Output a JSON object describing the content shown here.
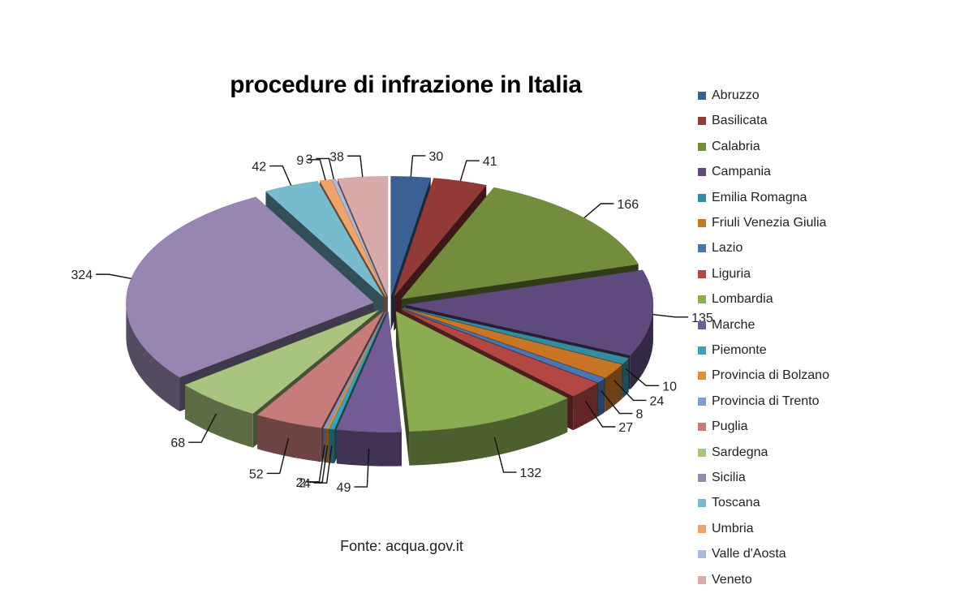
{
  "chart_data": {
    "type": "pie",
    "title": "procedure di infrazione in Italia",
    "note": "Fonte: acqua.gov.it",
    "legend_position": "right",
    "exploded_3d": true,
    "slices": [
      {
        "label": "Abruzzo",
        "value": 30,
        "color": "#3b6194"
      },
      {
        "label": "Basilicata",
        "value": 41,
        "color": "#913a38"
      },
      {
        "label": "Calabria",
        "value": 166,
        "color": "#738d3c"
      },
      {
        "label": "Campania",
        "value": 135,
        "color": "#5f4a7e"
      },
      {
        "label": "Emilia Romagna",
        "value": 10,
        "color": "#348c9e"
      },
      {
        "label": "Friuli Venezia Giulia",
        "value": 24,
        "color": "#c87526"
      },
      {
        "label": "Lazio",
        "value": 8,
        "color": "#4a76b0"
      },
      {
        "label": "Liguria",
        "value": 27,
        "color": "#b34744"
      },
      {
        "label": "Lombardia",
        "value": 132,
        "color": "#8cac52"
      },
      {
        "label": "Marche",
        "value": 49,
        "color": "#735b96"
      },
      {
        "label": "Piemonte",
        "value": 4,
        "color": "#3aa0b4"
      },
      {
        "label": "Provincia di Bolzano",
        "value": 2,
        "color": "#e38d36"
      },
      {
        "label": "Provincia di Trento",
        "value": 2,
        "color": "#7f9dcb"
      },
      {
        "label": "Puglia",
        "value": 52,
        "color": "#c77b7a"
      },
      {
        "label": "Sardegna",
        "value": 68,
        "color": "#a9c47e"
      },
      {
        "label": "Sicilia",
        "value": 324,
        "color": "#9886b2"
      },
      {
        "label": "Toscana",
        "value": 42,
        "color": "#78bace"
      },
      {
        "label": "Umbria",
        "value": 9,
        "color": "#f1a46a"
      },
      {
        "label": "Valle d'Aosta",
        "value": 3,
        "color": "#adb9d9"
      },
      {
        "label": "Veneto",
        "value": 38,
        "color": "#d9aaaa"
      }
    ]
  }
}
